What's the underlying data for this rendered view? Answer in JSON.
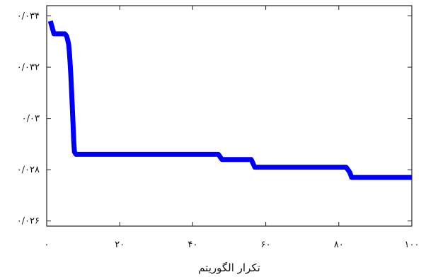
{
  "chart_data": {
    "type": "line",
    "title": "",
    "xlabel": "تکرار الگوریتم",
    "ylabel": "",
    "xlim": [
      0,
      100
    ],
    "ylim": [
      0.0258,
      0.0344
    ],
    "grid": false,
    "x_ticks": [
      {
        "value": 0,
        "label": "۰"
      },
      {
        "value": 20,
        "label": "۲۰"
      },
      {
        "value": 40,
        "label": "۴۰"
      },
      {
        "value": 60,
        "label": "۶۰"
      },
      {
        "value": 80,
        "label": "۸۰"
      },
      {
        "value": 100,
        "label": "۱۰۰"
      }
    ],
    "y_ticks": [
      {
        "value": 0.026,
        "label": "۰/۰۲۶"
      },
      {
        "value": 0.028,
        "label": "۰/۰۲۸"
      },
      {
        "value": 0.03,
        "label": "۰/۰۳"
      },
      {
        "value": 0.032,
        "label": "۰/۰۳۲"
      },
      {
        "value": 0.034,
        "label": "۰/۰۳۴"
      }
    ],
    "series": [
      {
        "color": "#0000ee",
        "points": [
          [
            1,
            0.0338
          ],
          [
            2,
            0.0333
          ],
          [
            5,
            0.0333
          ],
          [
            5.5,
            0.0332
          ],
          [
            6,
            0.0329
          ],
          [
            6.2,
            0.0326
          ],
          [
            6.4,
            0.0322
          ],
          [
            6.6,
            0.0317
          ],
          [
            6.8,
            0.0311
          ],
          [
            7,
            0.0305
          ],
          [
            7.2,
            0.0298
          ],
          [
            7.4,
            0.0291
          ],
          [
            7.6,
            0.0287
          ],
          [
            8,
            0.0286
          ],
          [
            47,
            0.0286
          ],
          [
            48,
            0.0284
          ],
          [
            56,
            0.0284
          ],
          [
            57,
            0.0281
          ],
          [
            82,
            0.0281
          ],
          [
            83,
            0.0279
          ],
          [
            83.5,
            0.0277
          ],
          [
            100,
            0.0277
          ]
        ]
      }
    ]
  }
}
